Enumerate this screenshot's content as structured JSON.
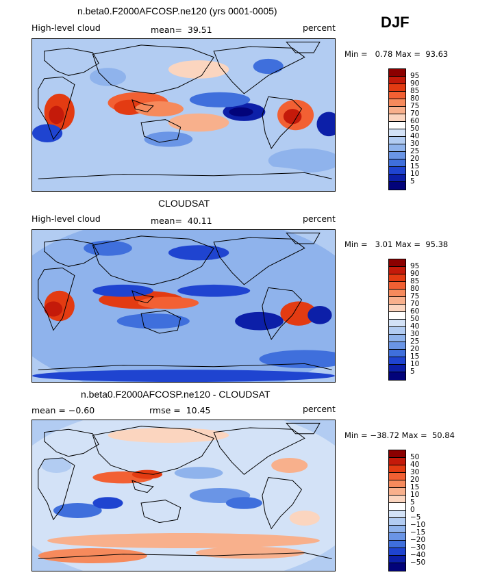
{
  "season": "DJF",
  "chart_data": [
    {
      "type": "heatmap",
      "title": "n.beta0.F2000AFCOSP.ne120 (yrs 0001-0005)",
      "field": "High-level cloud",
      "stat_left": "",
      "stat_label": "mean=",
      "stat_value": "39.51",
      "units": "percent",
      "min_label": "Min =",
      "min": "0.78",
      "max_label": "Max =",
      "max": "93.63",
      "levels": [
        "95",
        "90",
        "85",
        "80",
        "75",
        "70",
        "60",
        "50",
        "40",
        "30",
        "25",
        "20",
        "15",
        "10",
        "5"
      ],
      "colors": [
        "#8b0000",
        "#c41a0a",
        "#e33b12",
        "#f26033",
        "#f68a5c",
        "#f8b08c",
        "#fbd5bf",
        "#ffffff",
        "#d3e2f7",
        "#b2ccf2",
        "#8fb3ec",
        "#6a95e6",
        "#3f6fdc",
        "#1f44d0",
        "#0c1fa8",
        "#02037a"
      ]
    },
    {
      "type": "heatmap",
      "title": "CLOUDSAT",
      "field": "High-level cloud",
      "stat_left": "",
      "stat_label": "mean=",
      "stat_value": "40.11",
      "units": "percent",
      "min_label": "Min =",
      "min": "3.01",
      "max_label": "Max =",
      "max": "95.38",
      "levels": [
        "95",
        "90",
        "85",
        "80",
        "75",
        "70",
        "60",
        "50",
        "40",
        "30",
        "25",
        "20",
        "15",
        "10",
        "5"
      ],
      "colors": [
        "#8b0000",
        "#c41a0a",
        "#e33b12",
        "#f26033",
        "#f68a5c",
        "#f8b08c",
        "#fbd5bf",
        "#ffffff",
        "#d3e2f7",
        "#b2ccf2",
        "#8fb3ec",
        "#6a95e6",
        "#3f6fdc",
        "#1f44d0",
        "#0c1fa8",
        "#02037a"
      ]
    },
    {
      "type": "heatmap",
      "title": "n.beta0.F2000AFCOSP.ne120 - CLOUDSAT",
      "field": "",
      "stat_left": "mean =   −0.60",
      "stat_label": "rmse =",
      "stat_value": "10.45",
      "units": "percent",
      "min_label": "Min =",
      "min": "−38.72",
      "max_label": "Max =",
      "max": "50.84",
      "levels": [
        "50",
        "40",
        "30",
        "20",
        "15",
        "10",
        "5",
        "0",
        "−5",
        "−10",
        "−15",
        "−20",
        "−30",
        "−40",
        "−50"
      ],
      "colors": [
        "#8b0000",
        "#c41a0a",
        "#e33b12",
        "#f26033",
        "#f68a5c",
        "#f8b08c",
        "#fbd5bf",
        "#ffffff",
        "#d3e2f7",
        "#b2ccf2",
        "#8fb3ec",
        "#6a95e6",
        "#3f6fdc",
        "#1f44d0",
        "#0c1fa8",
        "#02037a"
      ]
    }
  ]
}
